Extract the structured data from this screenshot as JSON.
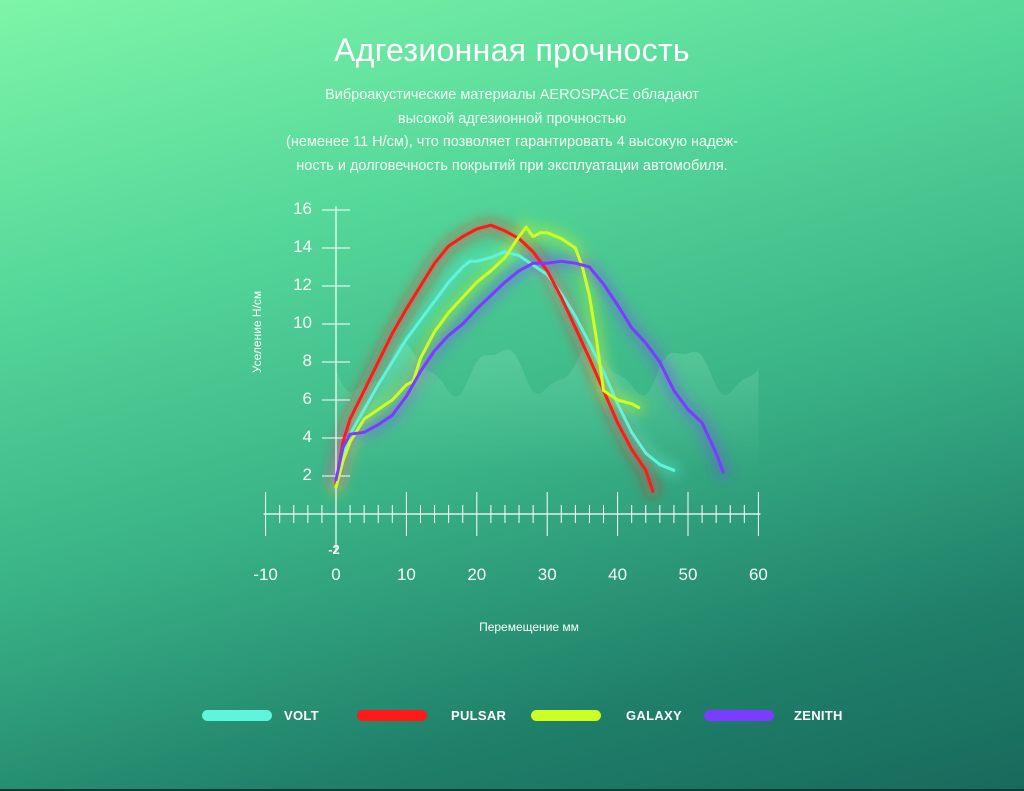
{
  "header": {
    "title": "Адгезионная прочность",
    "description_lines": [
      "Виброакустические материалы AEROSPACE обладают",
      "высокой адгезионной прочностью",
      "(неменее 11 Н/см), что позволяет гарантировать 4 высокую надеж-",
      "ность и долговечность покрытий при эксплуатации автомобиля."
    ]
  },
  "colors": {
    "axis": "#ffffff",
    "volt": "#5ef5dc",
    "pulsar": "#ff1a1a",
    "galaxy": "#ccff22",
    "zenith": "#7a3cff"
  },
  "chart_data": {
    "type": "line",
    "title": "",
    "xlabel": "Перемещение мм",
    "ylabel": "Уселение Н/см",
    "xlim": [
      -10,
      60
    ],
    "ylim": [
      -2,
      16
    ],
    "x_ticks": [
      -10,
      0,
      10,
      20,
      30,
      40,
      50,
      60
    ],
    "y_ticks": [
      2,
      4,
      6,
      8,
      10,
      12,
      14,
      16
    ],
    "y_min_label": "-2",
    "series": [
      {
        "name": "VOLT",
        "color": "#5ef5dc",
        "x": [
          0,
          1,
          2,
          4,
          6,
          8,
          10,
          12,
          14,
          16,
          18,
          19,
          20,
          22,
          24,
          26,
          28,
          30,
          32,
          34,
          36,
          38,
          40,
          42,
          44,
          46,
          48
        ],
        "y": [
          1.5,
          3.2,
          4.2,
          5.5,
          6.8,
          8.0,
          9.2,
          10.2,
          11.2,
          12.2,
          13.0,
          13.3,
          13.3,
          13.5,
          13.8,
          13.6,
          13.1,
          12.6,
          11.6,
          10.4,
          9.0,
          7.5,
          5.8,
          4.3,
          3.2,
          2.6,
          2.3
        ]
      },
      {
        "name": "PULSAR",
        "color": "#ff1a1a",
        "x": [
          0,
          1,
          2,
          4,
          6,
          8,
          10,
          12,
          14,
          16,
          18,
          20,
          22,
          24,
          26,
          28,
          30,
          32,
          34,
          36,
          38,
          40,
          42,
          44,
          45
        ],
        "y": [
          1.6,
          3.8,
          5.0,
          6.5,
          8.0,
          9.5,
          10.8,
          12.0,
          13.2,
          14.1,
          14.6,
          15.0,
          15.2,
          14.9,
          14.5,
          13.8,
          12.8,
          11.4,
          9.8,
          8.2,
          6.5,
          4.8,
          3.4,
          2.3,
          1.2
        ]
      },
      {
        "name": "GALAXY",
        "color": "#ccff22",
        "x": [
          0,
          1,
          2,
          4,
          6,
          8,
          10,
          11,
          12,
          14,
          16,
          18,
          20,
          22,
          24,
          26,
          27,
          28,
          29,
          30,
          32,
          34,
          35,
          36,
          37,
          38,
          40,
          42,
          43
        ],
        "y": [
          1.4,
          2.8,
          3.8,
          5.0,
          5.5,
          6.0,
          6.8,
          7.0,
          8.2,
          9.6,
          10.6,
          11.4,
          12.2,
          12.8,
          13.5,
          14.6,
          15.1,
          14.6,
          14.8,
          14.8,
          14.5,
          14.0,
          13.0,
          11.5,
          9.2,
          6.5,
          6.0,
          5.8,
          5.6
        ]
      },
      {
        "name": "ZENITH",
        "color": "#7a3cff",
        "x": [
          0,
          1,
          2,
          4,
          6,
          8,
          10,
          12,
          14,
          16,
          18,
          20,
          22,
          24,
          26,
          28,
          30,
          32,
          34,
          36,
          38,
          40,
          42,
          44,
          46,
          48,
          50,
          52,
          54,
          55
        ],
        "y": [
          1.8,
          3.5,
          4.2,
          4.3,
          4.7,
          5.2,
          6.2,
          7.5,
          8.6,
          9.4,
          10.0,
          10.8,
          11.5,
          12.2,
          12.8,
          13.2,
          13.2,
          13.3,
          13.2,
          13.0,
          12.1,
          11.0,
          9.8,
          9.0,
          8.0,
          6.5,
          5.5,
          4.8,
          3.2,
          2.2
        ]
      }
    ]
  },
  "legend": {
    "items": [
      {
        "label": "VOLT",
        "color": "#5ef5dc"
      },
      {
        "label": "PULSAR",
        "color": "#ff1a1a"
      },
      {
        "label": "GALAXY",
        "color": "#ccff22"
      },
      {
        "label": "ZENITH",
        "color": "#7a3cff"
      }
    ]
  }
}
